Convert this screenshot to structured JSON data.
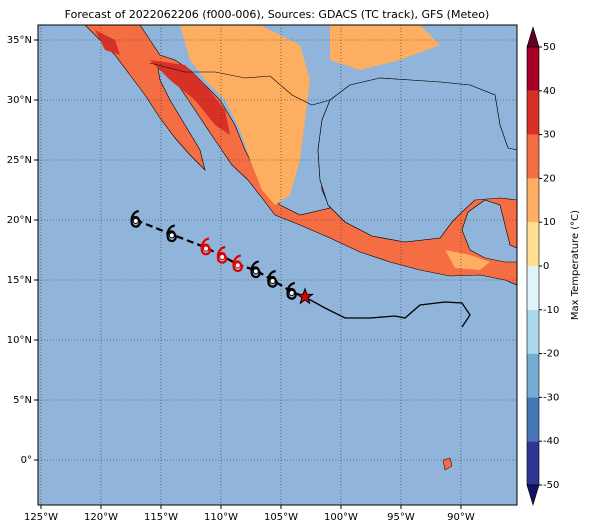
{
  "map": {
    "title": "Forecast of 2022062206 (f000-006), Sources: GDACS (TC track), GFS (Meteo)",
    "xlim": [
      -125.25,
      -85.33
    ],
    "ylim": [
      -3.75,
      36.25
    ],
    "xticks": [
      {
        "value": -125,
        "label": "125°W"
      },
      {
        "value": -120,
        "label": "120°W"
      },
      {
        "value": -115,
        "label": "115°W"
      },
      {
        "value": -110,
        "label": "110°W"
      },
      {
        "value": -105,
        "label": "105°W"
      },
      {
        "value": -100,
        "label": "100°W"
      },
      {
        "value": -95,
        "label": "95°W"
      },
      {
        "value": -90,
        "label": "90°W"
      }
    ],
    "yticks": [
      {
        "value": 0,
        "label": "0°"
      },
      {
        "value": 5,
        "label": "5°N"
      },
      {
        "value": 10,
        "label": "10°N"
      },
      {
        "value": 15,
        "label": "15°N"
      },
      {
        "value": 20,
        "label": "20°N"
      },
      {
        "value": 25,
        "label": "25°N"
      },
      {
        "value": 30,
        "label": "30°N"
      },
      {
        "value": 35,
        "label": "35°N"
      }
    ],
    "grid": true,
    "track": [
      {
        "lon": -117.1,
        "lat": 20.0,
        "color": "#000000"
      },
      {
        "lon": -114.1,
        "lat": 18.8,
        "color": "#000000"
      },
      {
        "lon": -111.25,
        "lat": 17.7,
        "color": "#e00000"
      },
      {
        "lon": -109.9,
        "lat": 17.0,
        "color": "#e00000"
      },
      {
        "lon": -108.6,
        "lat": 16.3,
        "color": "#e00000"
      },
      {
        "lon": -107.1,
        "lat": 15.8,
        "color": "#000000"
      },
      {
        "lon": -105.7,
        "lat": 15.0,
        "color": "#000000"
      },
      {
        "lon": -104.1,
        "lat": 14.0,
        "color": "#000000"
      }
    ],
    "current": {
      "lon": -103.0,
      "lat": 13.6,
      "color": "#e00000"
    },
    "colorbar": {
      "label": "Max Temperature (°C)",
      "levels": [
        -50,
        -40,
        -30,
        -20,
        -10,
        0,
        10,
        20,
        30,
        40,
        50
      ],
      "colors": [
        "#313695",
        "#4575b4",
        "#74add1",
        "#abd9e9",
        "#e0f3f8",
        "#fee090",
        "#fdae61",
        "#f46d43",
        "#d73027",
        "#a50026"
      ],
      "under_color": "#141466",
      "over_color": "#67001f",
      "ticks": [
        -50,
        -40,
        -30,
        -20,
        -10,
        0,
        10,
        20,
        30,
        40,
        50
      ]
    }
  }
}
